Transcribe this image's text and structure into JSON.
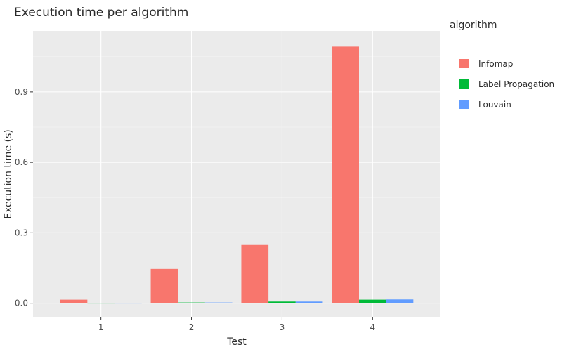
{
  "chart_data": {
    "type": "bar",
    "title": "Execution time per algorithm",
    "xlabel": "Test",
    "ylabel": "Execution time (s)",
    "categories": [
      "1",
      "2",
      "3",
      "4"
    ],
    "ylim": [
      -0.058,
      1.16
    ],
    "yticks": [
      0.0,
      0.3,
      0.6,
      0.9
    ],
    "ytick_labels": [
      "0.0",
      "0.3",
      "0.6",
      "0.9"
    ],
    "grid": true,
    "legend": {
      "title": "algorithm",
      "placement": "right"
    },
    "series": [
      {
        "name": "Infomap",
        "color": "#F8766D",
        "values": [
          0.015,
          0.146,
          0.248,
          1.093
        ]
      },
      {
        "name": "Label Propagation",
        "color": "#00BA38",
        "values": [
          0.001,
          0.003,
          0.007,
          0.015
        ]
      },
      {
        "name": "Louvain",
        "color": "#619CFF",
        "values": [
          0.001,
          0.003,
          0.007,
          0.016
        ]
      }
    ]
  }
}
